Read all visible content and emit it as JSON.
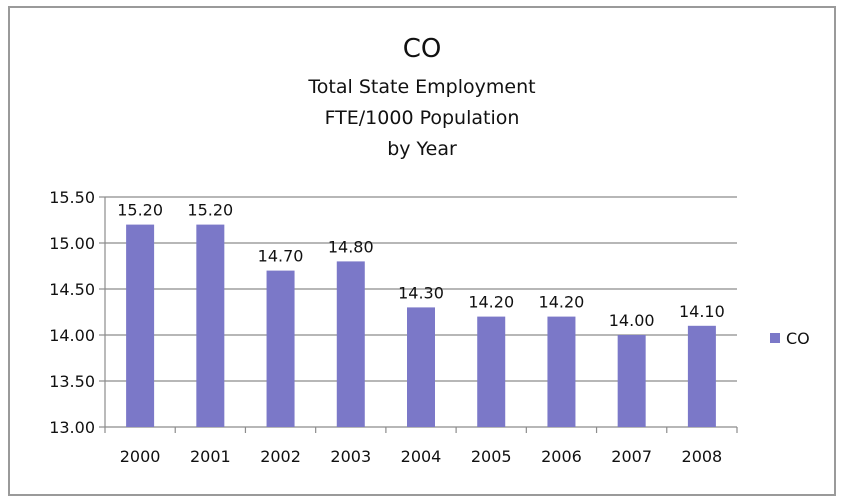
{
  "chart_data": {
    "type": "bar",
    "title": "CO",
    "subtitle_lines": [
      "Total State Employment",
      "FTE/1000 Population",
      "by Year"
    ],
    "categories": [
      "2000",
      "2001",
      "2002",
      "2003",
      "2004",
      "2005",
      "2006",
      "2007",
      "2008"
    ],
    "series": [
      {
        "name": "CO",
        "values": [
          15.2,
          15.2,
          14.7,
          14.8,
          14.3,
          14.2,
          14.2,
          14.0,
          14.1
        ],
        "labels": [
          "15.20",
          "15.20",
          "14.70",
          "14.80",
          "14.30",
          "14.20",
          "14.20",
          "14.00",
          "14.10"
        ],
        "color": "#7b78c8"
      }
    ],
    "ylim": [
      13.0,
      15.5
    ],
    "y_ticks": [
      "13.00",
      "13.50",
      "14.00",
      "14.50",
      "15.00",
      "15.50"
    ],
    "y_tick_values": [
      13.0,
      13.5,
      14.0,
      14.5,
      15.0,
      15.5
    ],
    "grid": true,
    "legend_position": "right"
  }
}
